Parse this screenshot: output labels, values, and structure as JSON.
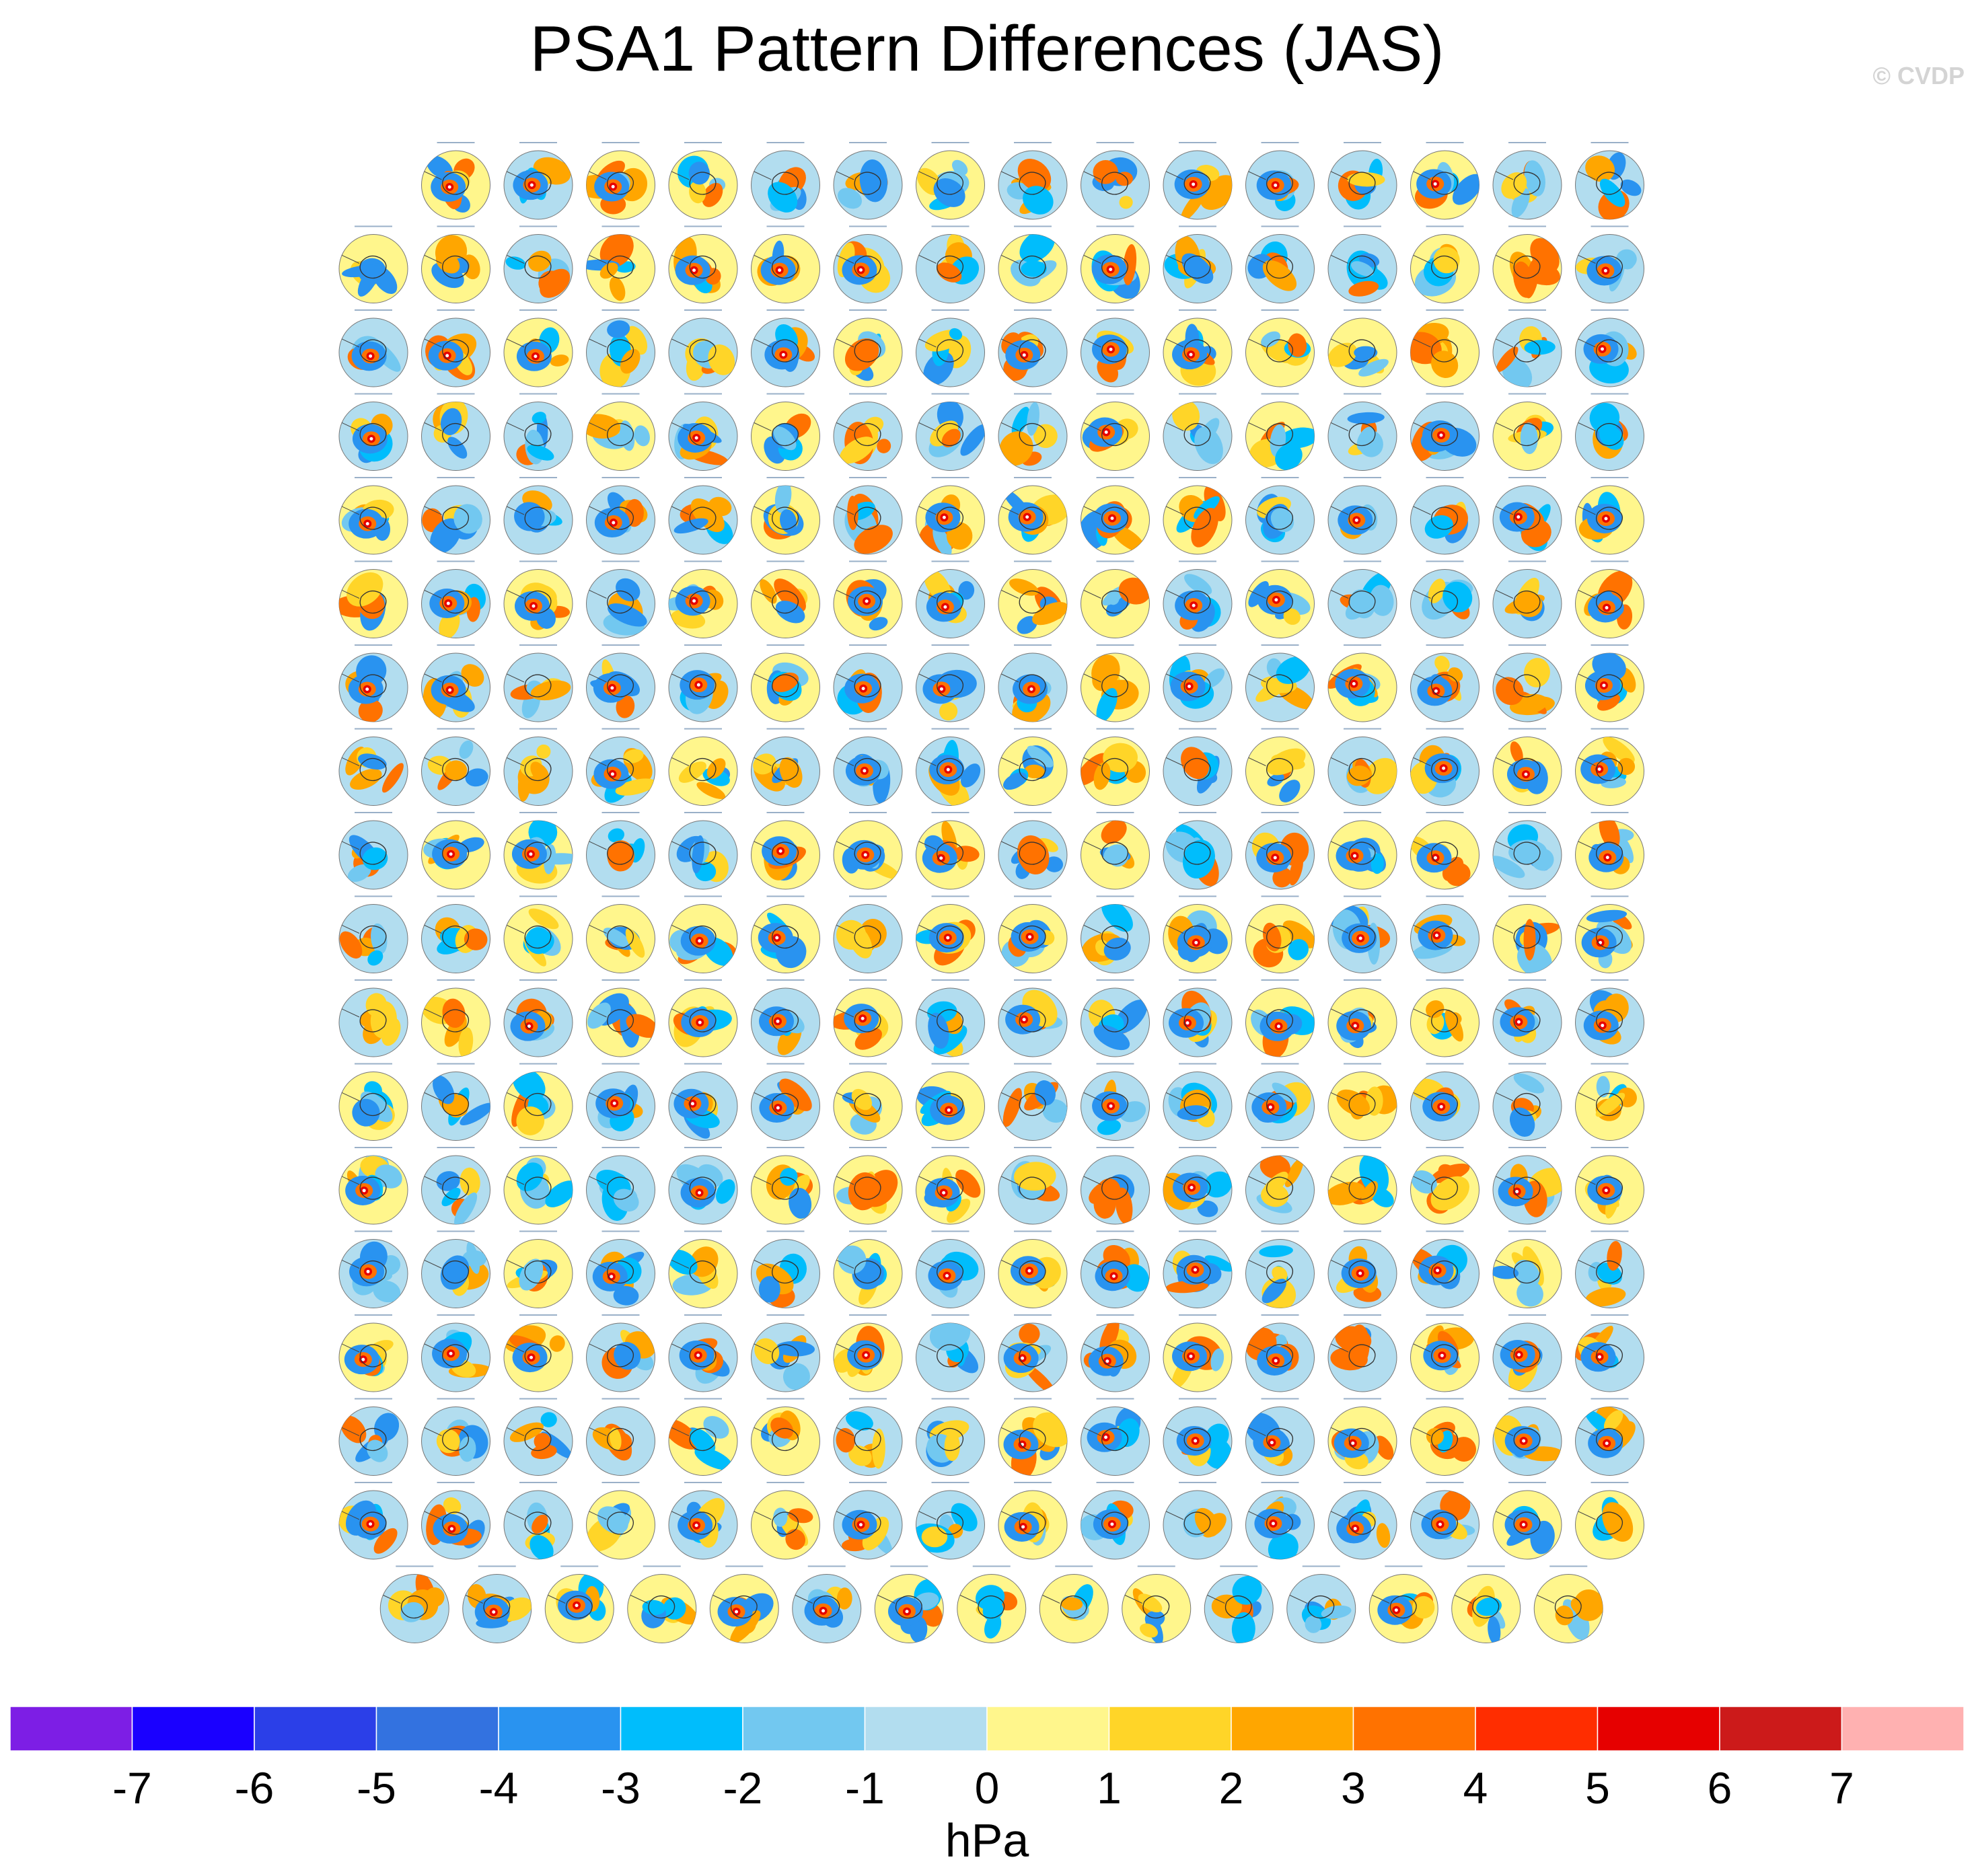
{
  "chart_data": {
    "type": "heatmap",
    "title": "PSA1 Pattern Differences (JAS)",
    "credit": "© CVDP",
    "panel_grid": {
      "description": "Southern-hemisphere polar-stereographic sea-level-pressure difference maps, one per model run",
      "rows": 18,
      "row_counts": [
        15,
        16,
        16,
        16,
        16,
        16,
        16,
        16,
        16,
        16,
        16,
        16,
        16,
        16,
        16,
        16,
        16,
        15
      ],
      "total_panels": 286
    },
    "colorbar": {
      "unit": "hPa",
      "tick_labels": [
        "-7",
        "-6",
        "-5",
        "-4",
        "-3",
        "-2",
        "-1",
        "0",
        "1",
        "2",
        "3",
        "4",
        "5",
        "6",
        "7"
      ],
      "levels": [
        -7,
        -6,
        -5,
        -4,
        -3,
        -2,
        -1,
        0,
        1,
        2,
        3,
        4,
        5,
        6,
        7
      ],
      "colors": [
        "#7d1ee5",
        "#1a00ff",
        "#2b3fe8",
        "#3372e0",
        "#2993f0",
        "#00bdfc",
        "#72c8f0",
        "#b2ddef",
        "#fff68c",
        "#ffd528",
        "#ffa600",
        "#ff7200",
        "#ff2d00",
        "#e60000",
        "#cc1a1a",
        "#ffb1b1"
      ]
    }
  }
}
